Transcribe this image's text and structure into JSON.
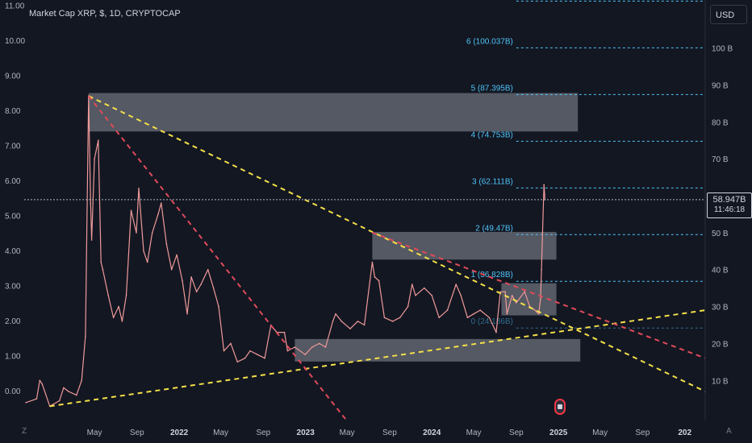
{
  "header": {
    "title": "Market Cap XRP, $, 1D, CRYPTOCAP",
    "currency_button": "USD"
  },
  "price_tag": {
    "value": "58.947B",
    "countdown": "11:46:18"
  },
  "corner_labels": {
    "left": "Z",
    "right": "A"
  },
  "chart_data": {
    "type": "line",
    "left_axis": {
      "ticks": [
        0,
        1,
        2,
        3,
        4,
        5,
        6,
        7,
        8,
        9,
        10,
        11
      ],
      "labels": [
        "0.00",
        "1.00",
        "2.00",
        "3.00",
        "4.00",
        "5.00",
        "6.00",
        "7.00",
        "8.00",
        "9.00",
        "10.00",
        "11.00"
      ],
      "ylim": [
        -0.85,
        11.15
      ]
    },
    "right_axis": {
      "ticks": [
        10,
        20,
        30,
        40,
        50,
        60,
        70,
        80,
        90,
        100
      ],
      "labels": [
        "10 B",
        "20 B",
        "30 B",
        "40 B",
        "50 B",
        "60 B",
        "70 B",
        "80 B",
        "90 B",
        "100 B"
      ],
      "ylim": [
        -0.85,
        113
      ]
    },
    "x_axis": {
      "ticks": [
        "2020-12-24",
        "2021-05-01",
        "2021-09-01",
        "2022-01-01",
        "2022-05-01",
        "2022-09-01",
        "2023-01-01",
        "2023-05-01",
        "2023-09-01",
        "2024-01-01",
        "2024-05-01",
        "2024-09-01",
        "2025-01-01",
        "2025-05-01",
        "2025-09-01",
        "2026-01-01"
      ],
      "labels": [
        "Z",
        "May",
        "Sep",
        "2022",
        "May",
        "Sep",
        "2023",
        "May",
        "Sep",
        "2024",
        "May",
        "Sep",
        "2025",
        "May",
        "Sep",
        "202"
      ],
      "bold": [
        "2022",
        "2023",
        "2024",
        "2025",
        "202"
      ],
      "range": [
        "2020-10-10",
        "2026-03-01"
      ]
    },
    "series": [
      {
        "color": "#ef9a9a",
        "points": [
          [
            "2020-10-15",
            4
          ],
          [
            "2020-11-15",
            5
          ],
          [
            "2020-11-24",
            10
          ],
          [
            "2020-12-01",
            9
          ],
          [
            "2020-12-23",
            3
          ],
          [
            "2021-01-01",
            3.5
          ],
          [
            "2021-01-20",
            4.5
          ],
          [
            "2021-02-01",
            8
          ],
          [
            "2021-02-15",
            7
          ],
          [
            "2021-03-10",
            6
          ],
          [
            "2021-03-25",
            10
          ],
          [
            "2021-04-05",
            22
          ],
          [
            "2021-04-14",
            87
          ],
          [
            "2021-04-20",
            58
          ],
          [
            "2021-04-23",
            48
          ],
          [
            "2021-05-01",
            70
          ],
          [
            "2021-05-12",
            75
          ],
          [
            "2021-05-20",
            42
          ],
          [
            "2021-05-25",
            40
          ],
          [
            "2021-06-10",
            33
          ],
          [
            "2021-06-25",
            27
          ],
          [
            "2021-07-10",
            30
          ],
          [
            "2021-07-20",
            26
          ],
          [
            "2021-08-01",
            33
          ],
          [
            "2021-08-15",
            56
          ],
          [
            "2021-08-30",
            50
          ],
          [
            "2021-09-06",
            62
          ],
          [
            "2021-09-20",
            45
          ],
          [
            "2021-10-01",
            42
          ],
          [
            "2021-10-15",
            50
          ],
          [
            "2021-11-01",
            55
          ],
          [
            "2021-11-10",
            58
          ],
          [
            "2021-11-25",
            47
          ],
          [
            "2021-12-10",
            40
          ],
          [
            "2021-12-25",
            44
          ],
          [
            "2022-01-10",
            37
          ],
          [
            "2022-01-24",
            28
          ],
          [
            "2022-02-05",
            38
          ],
          [
            "2022-02-20",
            34
          ],
          [
            "2022-03-05",
            36
          ],
          [
            "2022-03-25",
            40
          ],
          [
            "2022-04-10",
            35
          ],
          [
            "2022-04-25",
            30
          ],
          [
            "2022-05-10",
            18
          ],
          [
            "2022-05-30",
            20
          ],
          [
            "2022-06-18",
            15
          ],
          [
            "2022-07-10",
            16
          ],
          [
            "2022-07-25",
            18
          ],
          [
            "2022-08-15",
            17
          ],
          [
            "2022-09-05",
            16
          ],
          [
            "2022-09-23",
            25
          ],
          [
            "2022-10-10",
            23
          ],
          [
            "2022-11-01",
            23
          ],
          [
            "2022-11-10",
            18
          ],
          [
            "2022-12-01",
            19
          ],
          [
            "2022-12-31",
            17
          ],
          [
            "2023-01-20",
            19
          ],
          [
            "2023-02-10",
            20
          ],
          [
            "2023-02-28",
            19
          ],
          [
            "2023-03-21",
            26
          ],
          [
            "2023-03-29",
            28
          ],
          [
            "2023-04-15",
            26
          ],
          [
            "2023-05-10",
            24
          ],
          [
            "2023-06-01",
            26
          ],
          [
            "2023-06-20",
            25
          ],
          [
            "2023-07-13",
            42
          ],
          [
            "2023-07-20",
            38
          ],
          [
            "2023-08-01",
            37
          ],
          [
            "2023-08-17",
            27
          ],
          [
            "2023-09-10",
            26
          ],
          [
            "2023-10-01",
            27
          ],
          [
            "2023-10-24",
            30
          ],
          [
            "2023-11-05",
            36
          ],
          [
            "2023-11-15",
            33
          ],
          [
            "2023-12-10",
            35
          ],
          [
            "2024-01-01",
            33
          ],
          [
            "2024-01-22",
            27
          ],
          [
            "2024-02-15",
            29
          ],
          [
            "2024-03-11",
            36
          ],
          [
            "2024-03-25",
            33
          ],
          [
            "2024-04-13",
            27
          ],
          [
            "2024-05-01",
            28
          ],
          [
            "2024-05-20",
            29
          ],
          [
            "2024-06-15",
            27
          ],
          [
            "2024-07-05",
            23
          ],
          [
            "2024-07-17",
            34
          ],
          [
            "2024-07-31",
            34
          ],
          [
            "2024-08-05",
            28
          ],
          [
            "2024-08-20",
            33
          ],
          [
            "2024-09-01",
            31
          ],
          [
            "2024-09-25",
            34
          ],
          [
            "2024-10-10",
            30
          ],
          [
            "2024-10-25",
            29
          ],
          [
            "2024-11-05",
            28
          ],
          [
            "2024-11-10",
            32
          ],
          [
            "2024-11-13",
            40
          ],
          [
            "2024-11-16",
            50
          ],
          [
            "2024-11-20",
            63
          ],
          [
            "2024-11-23",
            58.9
          ]
        ]
      }
    ],
    "trendlines": [
      {
        "color": "#f5e04a",
        "style": "dashed",
        "from": [
          "2021-04-14",
          87
        ],
        "to": [
          "2026-03-01",
          7
        ]
      },
      {
        "color": "#f5e04a",
        "style": "dashed",
        "from": [
          "2020-12-23",
          3
        ],
        "to": [
          "2026-03-01",
          29
        ]
      },
      {
        "color": "#e04a5a",
        "style": "dashed",
        "from": [
          "2021-04-14",
          87
        ],
        "to": [
          "2023-05-01",
          -1
        ]
      },
      {
        "color": "#e04a5a",
        "style": "dashed",
        "from": [
          "2023-07-13",
          50
        ],
        "to": [
          "2026-03-01",
          16
        ]
      }
    ],
    "zones": [
      {
        "from": [
          "2021-04-14",
          87.8
        ],
        "to": [
          "2025-02-26",
          77.4
        ]
      },
      {
        "from": [
          "2023-07-13",
          50.2
        ],
        "to": [
          "2024-12-26",
          42.7
        ]
      },
      {
        "from": [
          "2022-12-01",
          21.2
        ],
        "to": [
          "2025-03-05",
          15.1
        ]
      },
      {
        "from": [
          "2024-07-20",
          36.3
        ],
        "to": [
          "2024-12-26",
          27.6
        ]
      }
    ],
    "levels": [
      {
        "label": "6 (100.037B)",
        "value": 100.037,
        "from": "2024-09-01"
      },
      {
        "label": "5 (87.395B)",
        "value": 87.395,
        "from": "2024-09-01"
      },
      {
        "label": "4 (74.753B)",
        "value": 74.753,
        "from": "2024-09-01"
      },
      {
        "label": "3 (62.111B)",
        "value": 62.111,
        "from": "2024-09-01"
      },
      {
        "label": "2 (49.47B)",
        "value": 49.47,
        "from": "2024-09-01"
      },
      {
        "label": "1 (36.828B)",
        "value": 36.828,
        "from": "2024-09-01"
      },
      {
        "label": "0 (24.186B)",
        "value": 24.186,
        "from": "2024-09-01"
      }
    ],
    "level_color": "#4fc3f7",
    "top_level_value": 112.7,
    "current_value": 58.947,
    "current_line_color": "#b2b5be",
    "grid": false,
    "legend": "none"
  }
}
